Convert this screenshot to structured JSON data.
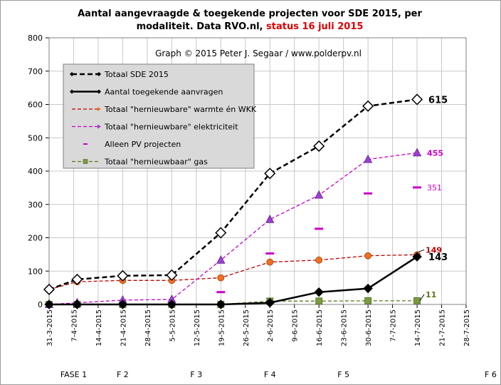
{
  "chart_data": {
    "type": "line",
    "title_line1": "Aantal aangevraagde & toegekende projecten voor SDE 2015, per",
    "title_line2_black": "modaliteit. Data RVO.nl, ",
    "title_line2_red": "status 16 juli 2015",
    "credit": "Graph  © 2015  Peter J. Segaar / www.polderpv.nl",
    "ylim": [
      0,
      800
    ],
    "yticks": [
      "0",
      "100",
      "200",
      "300",
      "400",
      "500",
      "600",
      "700",
      "800"
    ],
    "xlim": [
      "2015-03-31",
      "2015-07-28"
    ],
    "xticks": [
      "31-3-2015",
      "7-4-2015",
      "14-4-2015",
      "21-4-2015",
      "28-4-2015",
      "5-5-2015",
      "12-5-2015",
      "19-5-2015",
      "26-5-2015",
      "2-6-2015",
      "9-6-2015",
      "16-6-2015",
      "23-6-2015",
      "30-6-2015",
      "7-7-2015",
      "14-7-2015",
      "21-7-2015",
      "28-7-2015"
    ],
    "phases": [
      {
        "label": "FASE 1",
        "x": "2015-04-07"
      },
      {
        "label": "F 2",
        "x": "2015-04-21"
      },
      {
        "label": "F 3",
        "x": "2015-05-12"
      },
      {
        "label": "F 4",
        "x": "2015-06-02"
      },
      {
        "label": "F 5",
        "x": "2015-06-23"
      },
      {
        "label": "F 6",
        "x": "2015-08-04"
      }
    ],
    "series": [
      {
        "name": "Totaal SDE 2015",
        "color": "#000000",
        "style": "dashed",
        "marker": "diamond-open",
        "points": [
          [
            "2015-03-31",
            45
          ],
          [
            "2015-04-08",
            75
          ],
          [
            "2015-04-21",
            86
          ],
          [
            "2015-05-05",
            88
          ],
          [
            "2015-05-19",
            215
          ],
          [
            "2015-06-02",
            393
          ],
          [
            "2015-06-16",
            475
          ],
          [
            "2015-06-30",
            595
          ],
          [
            "2015-07-14",
            615
          ]
        ],
        "end_label": "615"
      },
      {
        "name": "Aantal toegekende aanvragen",
        "color": "#000000",
        "style": "solid",
        "marker": "diamond-filled",
        "points": [
          [
            "2015-03-31",
            0
          ],
          [
            "2015-04-08",
            0
          ],
          [
            "2015-04-21",
            0
          ],
          [
            "2015-05-05",
            0
          ],
          [
            "2015-05-19",
            0
          ],
          [
            "2015-06-02",
            5
          ],
          [
            "2015-06-16",
            37
          ],
          [
            "2015-06-30",
            48
          ],
          [
            "2015-07-14",
            143
          ]
        ],
        "end_label": "143"
      },
      {
        "name": "Totaal \"hernieuwbare\" warmte én WKK",
        "color": "#c00000",
        "style": "dashed",
        "marker": "circle-orange",
        "points": [
          [
            "2015-03-31",
            45
          ],
          [
            "2015-04-08",
            68
          ],
          [
            "2015-04-21",
            72
          ],
          [
            "2015-05-05",
            72
          ],
          [
            "2015-05-19",
            80
          ],
          [
            "2015-06-02",
            127
          ],
          [
            "2015-06-16",
            133
          ],
          [
            "2015-06-30",
            146
          ],
          [
            "2015-07-14",
            149
          ]
        ],
        "end_label": "149"
      },
      {
        "name": "Totaal \"hernieuwbare\" elektriciteit",
        "color": "#cc00cc",
        "style": "dashed",
        "marker": "triangle-purple",
        "points": [
          [
            "2015-03-31",
            0
          ],
          [
            "2015-04-08",
            5
          ],
          [
            "2015-04-21",
            13
          ],
          [
            "2015-05-05",
            15
          ],
          [
            "2015-05-19",
            133
          ],
          [
            "2015-06-02",
            255
          ],
          [
            "2015-06-16",
            328
          ],
          [
            "2015-06-30",
            435
          ],
          [
            "2015-07-14",
            455
          ]
        ],
        "end_label": "455"
      },
      {
        "name": "Alleen PV projecten",
        "color": "#cc00cc",
        "style": "none",
        "marker": "dash",
        "points": [
          [
            "2015-05-19",
            37
          ],
          [
            "2015-06-02",
            153
          ],
          [
            "2015-06-16",
            227
          ],
          [
            "2015-06-30",
            333
          ],
          [
            "2015-07-14",
            351
          ]
        ],
        "end_label": "351"
      },
      {
        "name": "Totaal \"hernieuwbaar\" gas",
        "color": "#5a7a1a",
        "style": "dashed",
        "marker": "square-olive",
        "points": [
          [
            "2015-03-31",
            0
          ],
          [
            "2015-04-08",
            0
          ],
          [
            "2015-04-21",
            0
          ],
          [
            "2015-05-05",
            0
          ],
          [
            "2015-05-19",
            0
          ],
          [
            "2015-06-02",
            10
          ],
          [
            "2015-06-16",
            10
          ],
          [
            "2015-06-30",
            11
          ],
          [
            "2015-07-14",
            11
          ]
        ],
        "end_label": "11"
      }
    ],
    "grid": true,
    "legend_position": "top-left"
  }
}
